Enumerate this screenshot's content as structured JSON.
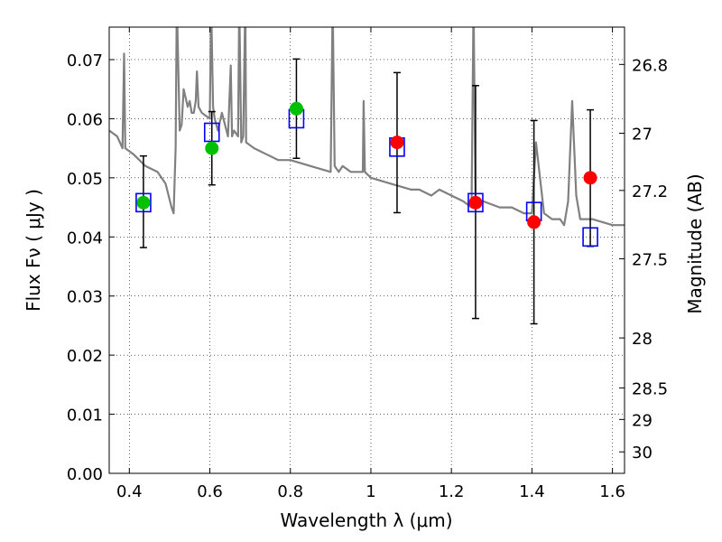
{
  "chart_data": {
    "type": "scatter",
    "title": "",
    "xlabel": "Wavelength  λ (μm)",
    "ylabel": "Flux  Fν  ( μJy )",
    "ylabel_right": "Magnitude (AB)",
    "xlim": [
      0.35,
      1.63
    ],
    "ylim": [
      0.0,
      0.0755
    ],
    "x_ticks": [
      0.4,
      0.6,
      0.8,
      1.0,
      1.2,
      1.4,
      1.6
    ],
    "x_tick_labels": [
      "0.4",
      "0.6",
      "0.8",
      "1",
      "1.2",
      "1.4",
      "1.6"
    ],
    "y_ticks": [
      0.0,
      0.01,
      0.02,
      0.03,
      0.04,
      0.05,
      0.06,
      0.07
    ],
    "y_tick_labels": [
      "0.00",
      "0.01",
      "0.02",
      "0.03",
      "0.04",
      "0.05",
      "0.06",
      "0.07"
    ],
    "mag_ticks": [
      26.8,
      27,
      27.2,
      27.5,
      28,
      28.5,
      29,
      30
    ],
    "mag_tick_labels": [
      "26.8",
      "27",
      "27.2",
      "27.5",
      "28",
      "28.5",
      "29",
      "30"
    ],
    "grid": true,
    "legend": "none",
    "colors": {
      "sed": "#808080",
      "model_box": "#0000ff",
      "obs_green": "#00c000",
      "obs_red": "#ff0000",
      "errorbar": "#000000"
    },
    "series": [
      {
        "kind": "line",
        "x": [
          0.35,
          0.37,
          0.383,
          0.387,
          0.39,
          0.41,
          0.44,
          0.47,
          0.49,
          0.505,
          0.51,
          0.515,
          0.518,
          0.525,
          0.53,
          0.535,
          0.545,
          0.55,
          0.555,
          0.56,
          0.565,
          0.568,
          0.572,
          0.58,
          0.6,
          0.603,
          0.608,
          0.612,
          0.62,
          0.63,
          0.645,
          0.652,
          0.655,
          0.66,
          0.67,
          0.673,
          0.678,
          0.683,
          0.688,
          0.69,
          0.71,
          0.74,
          0.77,
          0.8,
          0.85,
          0.9,
          0.905,
          0.91,
          0.92,
          0.93,
          0.95,
          0.98,
          0.982,
          0.985,
          1.0,
          1.05,
          1.1,
          1.12,
          1.15,
          1.17,
          1.2,
          1.23,
          1.25,
          1.255,
          1.26,
          1.28,
          1.32,
          1.35,
          1.38,
          1.4,
          1.41,
          1.43,
          1.45,
          1.47,
          1.48,
          1.49,
          1.5,
          1.51,
          1.52,
          1.55,
          1.6,
          1.63
        ],
        "y": [
          0.058,
          0.057,
          0.055,
          0.071,
          0.055,
          0.054,
          0.052,
          0.051,
          0.049,
          0.045,
          0.044,
          0.055,
          0.08,
          0.058,
          0.059,
          0.065,
          0.062,
          0.063,
          0.061,
          0.061,
          0.063,
          0.068,
          0.062,
          0.061,
          0.06,
          0.08,
          0.062,
          0.06,
          0.058,
          0.061,
          0.057,
          0.069,
          0.057,
          0.058,
          0.057,
          0.08,
          0.056,
          0.057,
          0.08,
          0.056,
          0.055,
          0.054,
          0.053,
          0.053,
          0.052,
          0.051,
          0.08,
          0.052,
          0.051,
          0.052,
          0.051,
          0.051,
          0.063,
          0.051,
          0.05,
          0.049,
          0.048,
          0.048,
          0.047,
          0.048,
          0.047,
          0.046,
          0.045,
          0.08,
          0.046,
          0.046,
          0.045,
          0.045,
          0.044,
          0.044,
          0.056,
          0.044,
          0.043,
          0.043,
          0.042,
          0.046,
          0.063,
          0.047,
          0.043,
          0.043,
          0.042,
          0.042
        ]
      },
      {
        "kind": "model-box",
        "x": [
          0.435,
          0.605,
          0.815,
          1.065,
          1.26,
          1.405,
          1.545
        ],
        "y": [
          0.0458,
          0.0577,
          0.06,
          0.0552,
          0.0458,
          0.0443,
          0.04
        ]
      },
      {
        "kind": "observed",
        "x": [
          0.435,
          0.605,
          0.815,
          1.065,
          1.26,
          1.405,
          1.545
        ],
        "y": [
          0.0458,
          0.055,
          0.0617,
          0.056,
          0.0458,
          0.0425,
          0.05
        ],
        "yerr_low": [
          0.0382,
          0.0488,
          0.0533,
          0.0441,
          0.0262,
          0.0253,
          0.0384
        ],
        "yerr_high": [
          0.0537,
          0.0612,
          0.0701,
          0.0678,
          0.0656,
          0.0597,
          0.0615
        ],
        "color": [
          "green",
          "green",
          "green",
          "red",
          "red",
          "red",
          "red"
        ]
      }
    ]
  }
}
